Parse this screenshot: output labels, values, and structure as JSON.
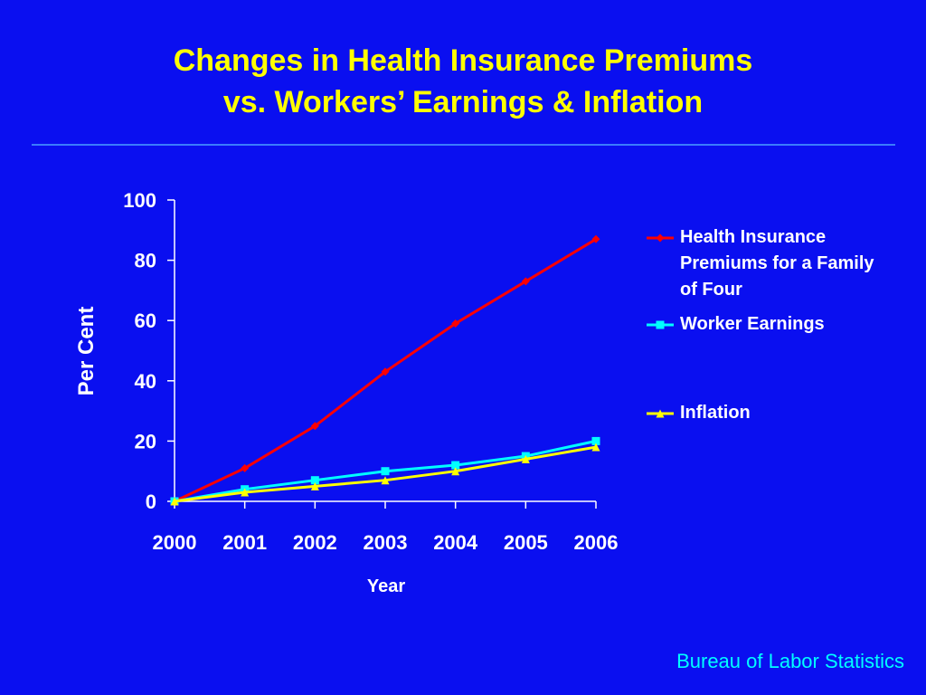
{
  "chart_data": {
    "type": "line",
    "title": "Changes in Health Insurance Premiums",
    "subtitle": "vs. Workers’ Earnings & Inflation",
    "y_label": "Per Cent",
    "x_label": "Year",
    "source": "Bureau of Labor Statistics",
    "categories": [
      "2000",
      "2001",
      "2002",
      "2003",
      "2004",
      "2005",
      "2006"
    ],
    "ylim": [
      0,
      100
    ],
    "yticks": [
      0,
      20,
      40,
      60,
      80,
      100
    ],
    "series": [
      {
        "name": "Health Insurance Premiums for a Family of Four",
        "color": "#ff0000",
        "marker": "diamond",
        "values": [
          0,
          11,
          25,
          43,
          59,
          73,
          87
        ]
      },
      {
        "name": "Worker Earnings",
        "color": "#00ffff",
        "marker": "square",
        "values": [
          0,
          4,
          7,
          10,
          12,
          15,
          20
        ]
      },
      {
        "name": "Inflation",
        "color": "#ffff00",
        "marker": "triangle",
        "values": [
          0,
          3,
          5,
          7,
          10,
          14,
          18
        ]
      }
    ]
  }
}
